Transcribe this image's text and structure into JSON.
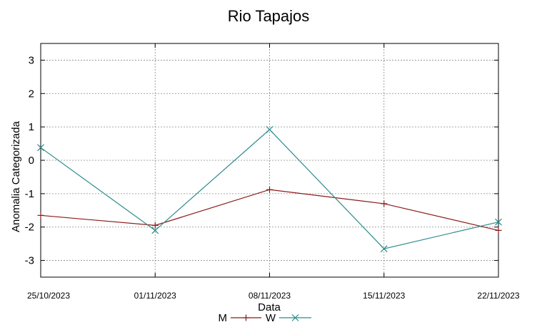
{
  "chart_data": {
    "type": "line",
    "title": "Rio Tapajos",
    "xlabel": "Data",
    "ylabel": "Anomalia Categorizada",
    "ylim": [
      -3.5,
      3.5
    ],
    "yticks": [
      "3",
      "2",
      "1",
      "0",
      "-1",
      "-2",
      "-3"
    ],
    "categories": [
      "25/10/2023",
      "01/11/2023",
      "08/11/2023",
      "15/11/2023",
      "22/11/2023"
    ],
    "grid": true,
    "legend": "bottom-center",
    "series": [
      {
        "name": "M",
        "color": "#8b1a1a",
        "marker": "plus",
        "values": [
          -1.65,
          -1.95,
          -0.88,
          -1.3,
          -2.1
        ]
      },
      {
        "name": "W",
        "color": "#2e8b8b",
        "marker": "cross",
        "values": [
          0.38,
          -2.1,
          0.92,
          -2.65,
          -1.85
        ]
      }
    ]
  }
}
